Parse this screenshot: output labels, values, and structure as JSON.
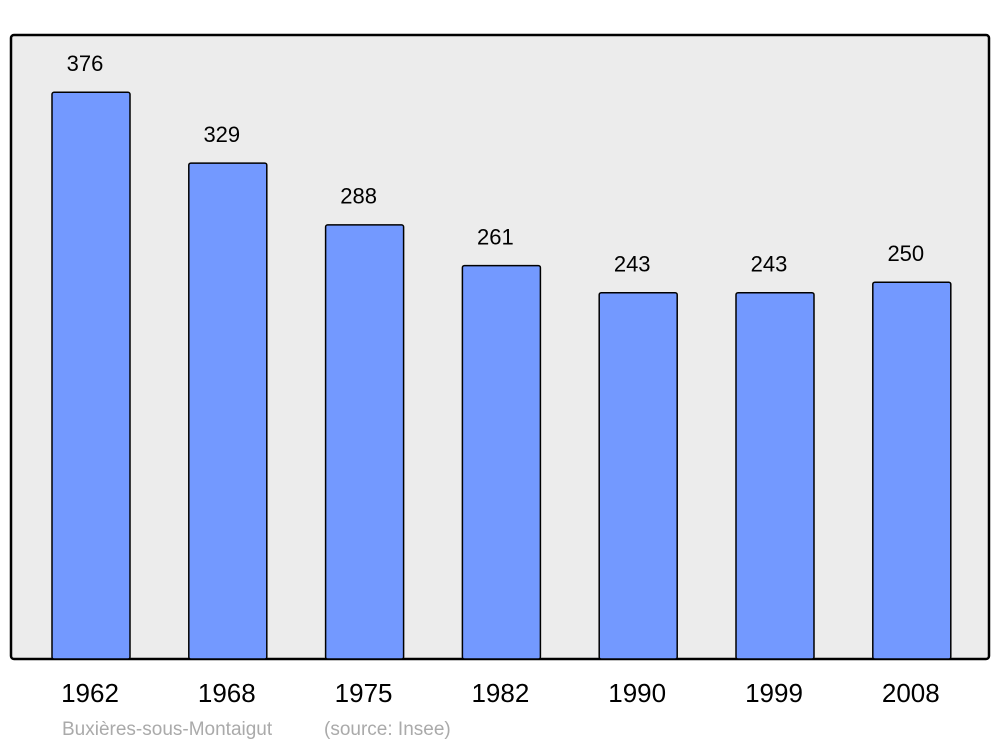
{
  "chart_data": {
    "type": "bar",
    "categories": [
      "1962",
      "1968",
      "1975",
      "1982",
      "1990",
      "1999",
      "2008"
    ],
    "values": [
      376,
      329,
      288,
      261,
      243,
      243,
      250
    ],
    "color": "#7399ff",
    "ylim": [
      0,
      414
    ],
    "caption": "Buxières-sous-Montaigut",
    "source": "(source: Insee)"
  }
}
